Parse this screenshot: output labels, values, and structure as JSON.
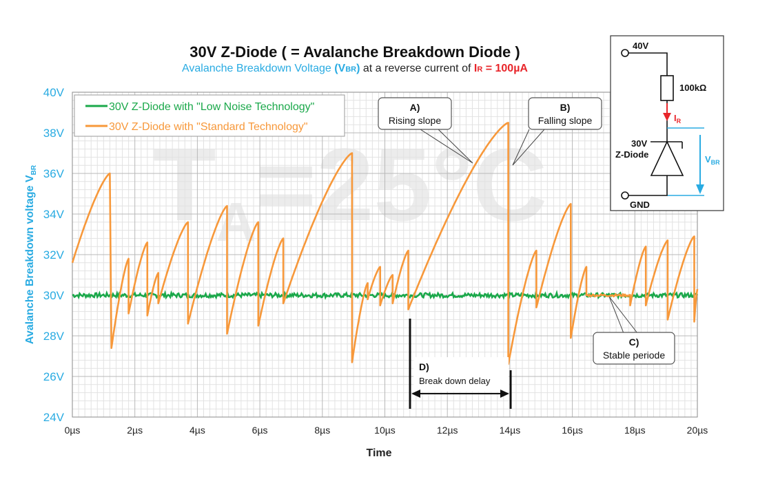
{
  "chart_data": {
    "type": "line",
    "title": "30V Z-Diode ( = Avalanche Breakdown Diode )",
    "subtitle": {
      "part1": "Avalanche Breakdown Voltage",
      "vbr_open": "(V",
      "vbr_sub": "BR",
      "vbr_close": ")",
      "part2": "at a reverse current of",
      "ir_main": "I",
      "ir_sub": "R",
      "ir_value": "= 100µA"
    },
    "xlabel": "Time",
    "ylabel": "Avalanche Breakdown voltage",
    "ylabel_symbol": "V",
    "ylabel_symbol_sub": "BR",
    "xlim": [
      0,
      20
    ],
    "ylim": [
      24,
      40
    ],
    "x_ticks": [
      "0µs",
      "2µs",
      "4µs",
      "6µs",
      "8µs",
      "10µs",
      "12µs",
      "14µs",
      "16µs",
      "18µs",
      "20µs"
    ],
    "y_ticks": [
      "24V",
      "26V",
      "28V",
      "30V",
      "32V",
      "34V",
      "36V",
      "38V",
      "40V"
    ],
    "grid": true,
    "legend_position": "top-left",
    "watermark": {
      "main": "T",
      "sub": "A",
      "rest": "=25°C"
    },
    "series": [
      {
        "name": "30V Z-Diode with \"Low Noise Technology\"",
        "color": "#1aa84a",
        "style": "noise",
        "constant": 30,
        "x_range": [
          0,
          20
        ]
      },
      {
        "name": "30V Z-Diode with \"Standard Technology\"",
        "color": "#f7983a",
        "style": "sawtooth",
        "segments": [
          [
            0.0,
            31.6,
            1.2,
            36.0
          ],
          [
            1.25,
            27.4,
            1.8,
            31.8
          ],
          [
            1.8,
            29.1,
            2.4,
            32.6
          ],
          [
            2.4,
            29.0,
            2.75,
            31.1
          ],
          [
            2.75,
            29.6,
            3.7,
            33.6
          ],
          [
            3.7,
            28.6,
            4.95,
            34.4
          ],
          [
            4.95,
            28.1,
            5.95,
            33.6
          ],
          [
            5.95,
            28.5,
            6.75,
            32.8
          ],
          [
            6.75,
            29.6,
            8.95,
            37.0
          ],
          [
            8.95,
            26.7,
            9.45,
            30.6
          ],
          [
            9.45,
            29.8,
            9.85,
            31.4
          ],
          [
            9.85,
            29.5,
            10.25,
            31.0
          ],
          [
            10.25,
            29.6,
            10.75,
            32.2
          ],
          [
            10.75,
            29.3,
            13.95,
            38.5
          ],
          [
            13.95,
            26.6,
            14.85,
            32.2
          ],
          [
            14.85,
            29.4,
            15.95,
            34.5
          ],
          [
            15.95,
            27.9,
            16.45,
            31.4
          ],
          [
            16.45,
            30.0,
            17.85,
            30.0
          ],
          [
            17.85,
            29.5,
            18.35,
            32.4
          ],
          [
            18.35,
            29.5,
            19.05,
            32.7
          ],
          [
            19.05,
            28.8,
            19.9,
            32.9
          ],
          [
            19.9,
            28.7,
            20.0,
            30.3
          ]
        ]
      }
    ],
    "annotations": [
      {
        "id": "A",
        "label": "A)",
        "text": "Rising slope"
      },
      {
        "id": "B",
        "label": "B)",
        "text": "Falling slope"
      },
      {
        "id": "C",
        "label": "C)",
        "text": "Stable periode"
      },
      {
        "id": "D",
        "label": "D)",
        "text": "Break down delay"
      }
    ]
  },
  "circuit": {
    "supply": "40V",
    "resistor": "100kΩ",
    "current_main": "I",
    "current_sub": "R",
    "diode_line1": "30V",
    "diode_line2": "Z-Diode",
    "vbr_main": "V",
    "vbr_sub": "BR",
    "ground": "GND"
  },
  "colors": {
    "axis_text": "#29abe2",
    "low_noise": "#1aa84a",
    "standard": "#f7983a",
    "accent_red": "#e8252a",
    "grid_major": "#b8b8b8",
    "grid_minor": "#e2e2e2"
  }
}
